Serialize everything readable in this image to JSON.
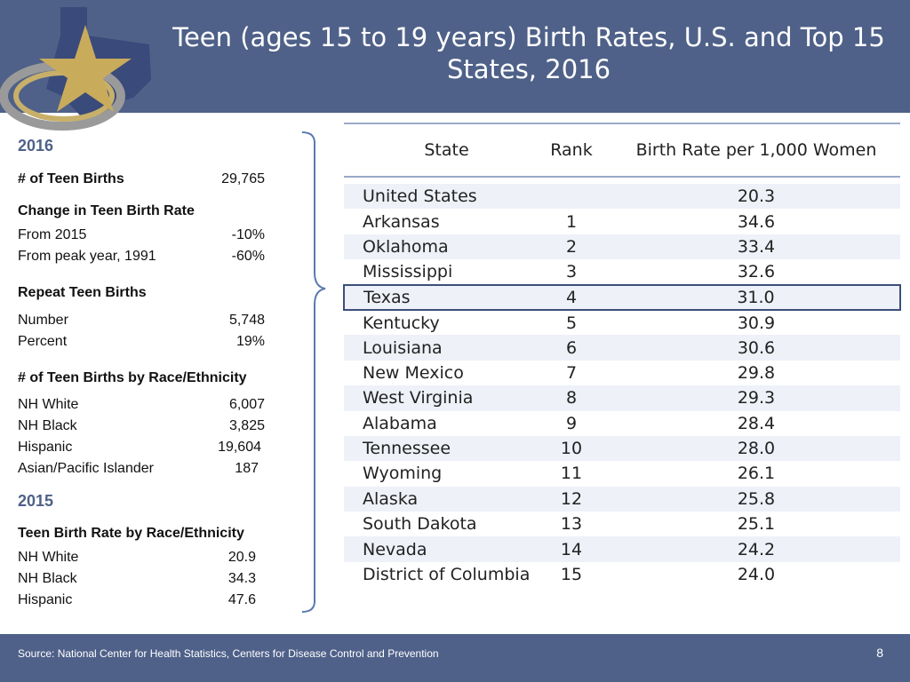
{
  "title": "Teen (ages 15 to 19 years) Birth Rates, U.S. and Top 15 States, 2016",
  "left": {
    "year_2016": "2016",
    "teen_births_label": "# of Teen Births",
    "teen_births_value": "29,765",
    "change_label": "Change in Teen Birth Rate",
    "change_rows": [
      {
        "k": "From 2015",
        "v": "-10%"
      },
      {
        "k": "From peak year, 1991",
        "v": "-60%"
      }
    ],
    "repeat_label": "Repeat Teen Births",
    "repeat_rows": [
      {
        "k": "Number",
        "v": "5,748"
      },
      {
        "k": "Percent",
        "v": "19%"
      }
    ],
    "race_label": "# of Teen Births by Race/Ethnicity",
    "race_rows": [
      {
        "k": "NH White",
        "v": "6,007"
      },
      {
        "k": "NH Black",
        "v": "3,825"
      },
      {
        "k": "Hispanic",
        "v": "19,604"
      },
      {
        "k": "Asian/Pacific Islander",
        "v": "187"
      }
    ],
    "year_2015": "2015",
    "rate_label": "Teen Birth Rate by Race/Ethnicity",
    "rate_rows": [
      {
        "k": "NH White",
        "v": "20.9"
      },
      {
        "k": "NH Black",
        "v": "34.3"
      },
      {
        "k": "Hispanic",
        "v": "47.6"
      }
    ]
  },
  "table": {
    "headers": [
      "State",
      "Rank",
      "Birth Rate per 1,000 Women"
    ],
    "rows": [
      {
        "state": "United States",
        "rank": "",
        "rate": "20.3"
      },
      {
        "state": "Arkansas",
        "rank": "1",
        "rate": "34.6"
      },
      {
        "state": "Oklahoma",
        "rank": "2",
        "rate": "33.4"
      },
      {
        "state": "Mississippi",
        "rank": "3",
        "rate": "32.6"
      },
      {
        "state": "Texas",
        "rank": "4",
        "rate": "31.0"
      },
      {
        "state": "Kentucky",
        "rank": "5",
        "rate": "30.9"
      },
      {
        "state": "Louisiana",
        "rank": "6",
        "rate": "30.6"
      },
      {
        "state": "New Mexico",
        "rank": "7",
        "rate": "29.8"
      },
      {
        "state": "West Virginia",
        "rank": "8",
        "rate": "29.3"
      },
      {
        "state": "Alabama",
        "rank": "9",
        "rate": "28.4"
      },
      {
        "state": "Tennessee",
        "rank": "10",
        "rate": "28.0"
      },
      {
        "state": "Wyoming",
        "rank": "11",
        "rate": "26.1"
      },
      {
        "state": "Alaska",
        "rank": "12",
        "rate": "25.8"
      },
      {
        "state": "South Dakota",
        "rank": "13",
        "rate": "25.1"
      },
      {
        "state": "Nevada",
        "rank": "14",
        "rate": "24.2"
      },
      {
        "state": "District of Columbia",
        "rank": "15",
        "rate": "24.0"
      }
    ]
  },
  "footer": {
    "source": "Source: National Center for Health Statistics, Centers for Disease Control and Prevention",
    "page": "8"
  },
  "colors": {
    "header": "#4f6189",
    "accent": "#4f6189",
    "stripe": "#eef1f8",
    "highlight": "#3c4f7a"
  },
  "icons": {
    "logo": "texas-star-logo",
    "brace": "curly-brace"
  }
}
